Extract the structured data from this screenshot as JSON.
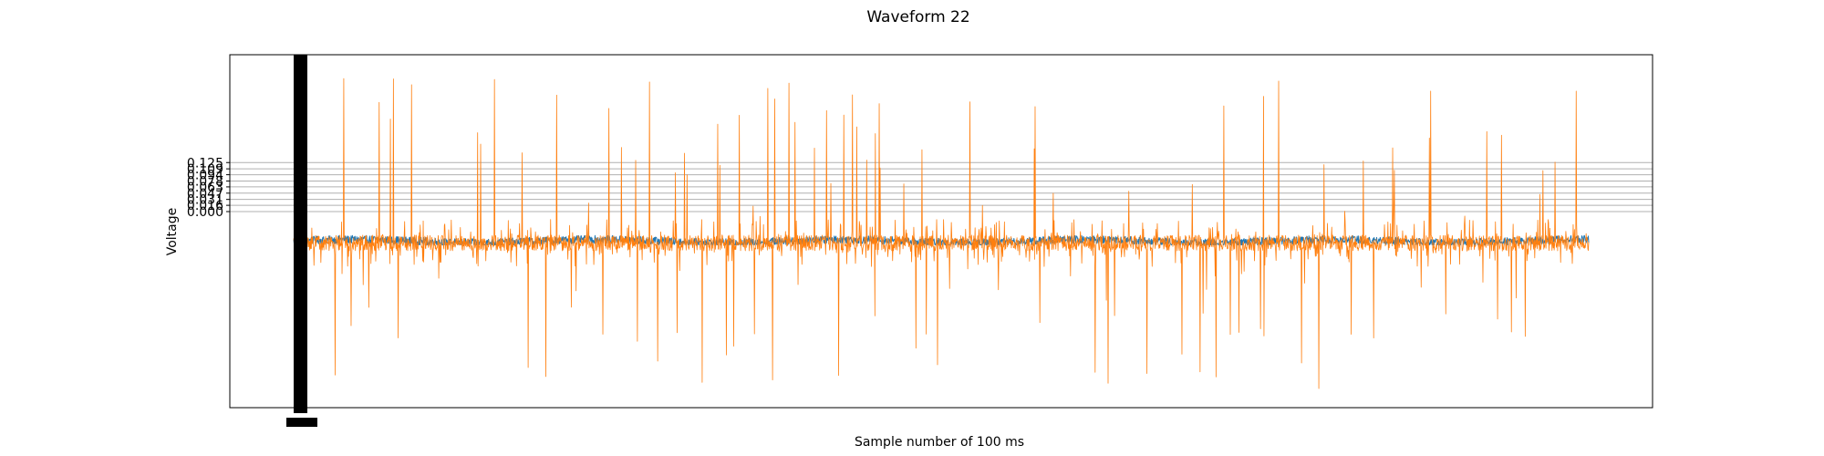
{
  "chart_data": {
    "type": "line",
    "title": "Waveform 22",
    "xlabel": "Sample number of 100 ms",
    "ylabel": "Voltage",
    "yticks": [
      "0.000",
      "0.016",
      "0.031",
      "0.047",
      "0.063",
      "0.078",
      "0.094",
      "0.109",
      "0.125"
    ],
    "ylim": [
      -0.5,
      0.4
    ],
    "grid": true,
    "legend": "none",
    "series": [
      {
        "color": "#1f77b4",
        "n_samples": 3000,
        "baseline": -0.075,
        "range": [
          -0.085,
          -0.06
        ]
      },
      {
        "color": "#ff7f0e",
        "n_samples": 3000,
        "baseline": -0.08,
        "range": [
          -0.47,
          0.36
        ]
      }
    ]
  }
}
